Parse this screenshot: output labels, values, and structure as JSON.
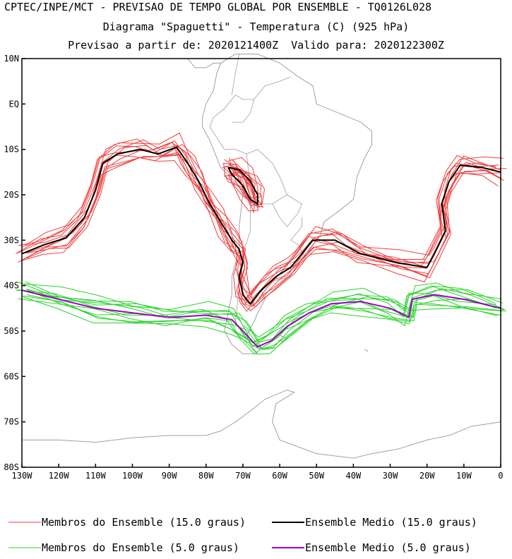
{
  "title": {
    "line1": "CPTEC/INPE/MCT - PREVISAO DE TEMPO GLOBAL POR ENSEMBLE - TQ0126L028",
    "line2": "Diagrama \"Spaguetti\" - Temperatura (C) (925 hPa)",
    "line3": "Previsao a partir de: 2020121400Z  Valido para: 2020122300Z"
  },
  "map": {
    "lon_range": [
      -130,
      0
    ],
    "lat_range": [
      -80,
      10
    ],
    "projection": "equirectangular",
    "lat_ticks": [
      {
        "value": 10,
        "label": "10N"
      },
      {
        "value": 0,
        "label": "EQ"
      },
      {
        "value": -10,
        "label": "10S"
      },
      {
        "value": -20,
        "label": "20S"
      },
      {
        "value": -30,
        "label": "30S"
      },
      {
        "value": -40,
        "label": "40S"
      },
      {
        "value": -50,
        "label": "50S"
      },
      {
        "value": -60,
        "label": "60S"
      },
      {
        "value": -70,
        "label": "70S"
      },
      {
        "value": -80,
        "label": "80S"
      }
    ],
    "lon_ticks": [
      {
        "value": -130,
        "label": "130W"
      },
      {
        "value": -120,
        "label": "120W"
      },
      {
        "value": -110,
        "label": "110W"
      },
      {
        "value": -100,
        "label": "100W"
      },
      {
        "value": -90,
        "label": "90W"
      },
      {
        "value": -80,
        "label": "80W"
      },
      {
        "value": -70,
        "label": "70W"
      },
      {
        "value": -60,
        "label": "60W"
      },
      {
        "value": -50,
        "label": "50W"
      },
      {
        "value": -40,
        "label": "40W"
      },
      {
        "value": -30,
        "label": "30W"
      },
      {
        "value": -20,
        "label": "20W"
      },
      {
        "value": -10,
        "label": "10W"
      },
      {
        "value": 0,
        "label": "0"
      }
    ],
    "colors": {
      "coastline": "#a0a0a0",
      "member15": "#f03c3c",
      "mean15": "#000000",
      "member5": "#28d228",
      "mean5": "#a000c8"
    },
    "mean15": [
      [
        -130,
        -33
      ],
      [
        -124,
        -31
      ],
      [
        -118,
        -29.5
      ],
      [
        -113,
        -25
      ],
      [
        -110,
        -19
      ],
      [
        -108,
        -13
      ],
      [
        -104,
        -11
      ],
      [
        -98,
        -10
      ],
      [
        -93,
        -11
      ],
      [
        -88,
        -9.5
      ],
      [
        -85,
        -13
      ],
      [
        -82,
        -17
      ],
      [
        -79,
        -22
      ],
      [
        -76,
        -26
      ],
      [
        -73,
        -30
      ],
      [
        -71,
        -32
      ],
      [
        -70,
        -35
      ],
      [
        -71,
        -38
      ],
      [
        -70,
        -42
      ],
      [
        -68,
        -44
      ],
      [
        -65,
        -41
      ],
      [
        -61,
        -38
      ],
      [
        -57,
        -36
      ],
      [
        -54,
        -33
      ],
      [
        -51,
        -30
      ],
      [
        -45,
        -30
      ],
      [
        -38,
        -33
      ],
      [
        -28,
        -35
      ],
      [
        -20,
        -36
      ],
      [
        -18,
        -33
      ],
      [
        -15,
        -28
      ],
      [
        -16,
        -22
      ],
      [
        -14,
        -17
      ],
      [
        -11,
        -13.5
      ],
      [
        -5,
        -14
      ],
      [
        0,
        -15
      ]
    ],
    "mean15_inland": [
      [
        -74,
        -14
      ],
      [
        -71,
        -14.5
      ],
      [
        -68,
        -17
      ],
      [
        -66,
        -20
      ],
      [
        -66,
        -22
      ],
      [
        -68,
        -21
      ],
      [
        -70,
        -18
      ],
      [
        -73,
        -15.5
      ],
      [
        -74,
        -14
      ]
    ],
    "mean5": [
      [
        -130,
        -41
      ],
      [
        -120,
        -43
      ],
      [
        -110,
        -45
      ],
      [
        -100,
        -46
      ],
      [
        -90,
        -47
      ],
      [
        -80,
        -46.5
      ],
      [
        -73,
        -47.5
      ],
      [
        -70,
        -50
      ],
      [
        -66,
        -53.5
      ],
      [
        -62,
        -52
      ],
      [
        -58,
        -49
      ],
      [
        -52,
        -46
      ],
      [
        -46,
        -44
      ],
      [
        -38,
        -43.5
      ],
      [
        -30,
        -45
      ],
      [
        -25,
        -47
      ],
      [
        -24,
        -43
      ],
      [
        -18,
        -42
      ],
      [
        -10,
        -43
      ],
      [
        0,
        -45
      ]
    ],
    "continents": [
      [
        [
          -81,
          -3
        ],
        [
          -80,
          0
        ],
        [
          -78,
          3
        ],
        [
          -77,
          7
        ],
        [
          -76,
          9
        ],
        [
          -72,
          11
        ],
        [
          -66,
          11
        ],
        [
          -60,
          9
        ],
        [
          -55,
          6
        ],
        [
          -51,
          4
        ],
        [
          -50,
          0
        ],
        [
          -44,
          -2
        ],
        [
          -38,
          -4
        ],
        [
          -35,
          -6
        ],
        [
          -35,
          -9
        ],
        [
          -37,
          -12
        ],
        [
          -39,
          -16
        ],
        [
          -40,
          -21
        ],
        [
          -43,
          -23
        ],
        [
          -48,
          -26
        ],
        [
          -49,
          -29
        ],
        [
          -52,
          -32
        ],
        [
          -54,
          -34
        ],
        [
          -57,
          -35
        ],
        [
          -57,
          -38
        ],
        [
          -62,
          -39
        ],
        [
          -65,
          -41
        ],
        [
          -64,
          -43
        ],
        [
          -66,
          -46
        ],
        [
          -67,
          -48
        ],
        [
          -69,
          -51
        ],
        [
          -68,
          -53
        ],
        [
          -66,
          -55
        ],
        [
          -70,
          -55
        ],
        [
          -73,
          -53
        ],
        [
          -75,
          -50
        ],
        [
          -74,
          -46
        ],
        [
          -73,
          -42
        ],
        [
          -73,
          -38
        ],
        [
          -71,
          -32
        ],
        [
          -71,
          -27
        ],
        [
          -70,
          -20
        ],
        [
          -71,
          -18
        ],
        [
          -76,
          -14
        ],
        [
          -79,
          -8
        ],
        [
          -81,
          -5
        ],
        [
          -81,
          -3
        ]
      ],
      [
        [
          -90,
          10
        ],
        [
          -85,
          10
        ],
        [
          -83,
          8
        ],
        [
          -80,
          8
        ],
        [
          -78,
          9
        ],
        [
          -76,
          9
        ]
      ],
      [
        [
          -60,
          -51
        ],
        [
          -58,
          -51.5
        ],
        [
          -59,
          -52.3
        ],
        [
          -60.5,
          -52
        ]
      ],
      [
        [
          -37,
          -54
        ],
        [
          -36,
          -54.5
        ]
      ],
      [
        [
          -130,
          -74
        ],
        [
          -120,
          -74
        ],
        [
          -110,
          -74.5
        ],
        [
          -100,
          -73.5
        ],
        [
          -90,
          -73
        ],
        [
          -80,
          -73
        ],
        [
          -76,
          -72
        ],
        [
          -72,
          -70
        ],
        [
          -67,
          -67
        ],
        [
          -64,
          -65
        ],
        [
          -58,
          -63
        ],
        [
          -56,
          -63.5
        ],
        [
          -58,
          -64.5
        ],
        [
          -61,
          -66
        ],
        [
          -62,
          -70
        ],
        [
          -60,
          -74
        ],
        [
          -50,
          -77
        ],
        [
          -40,
          -78
        ],
        [
          -35,
          -77
        ],
        [
          -28,
          -76
        ],
        [
          -20,
          -74
        ],
        [
          -14,
          -73
        ],
        [
          -8,
          -71
        ],
        [
          0,
          -70
        ]
      ]
    ],
    "borders": [
      [
        [
          -70,
          -18
        ],
        [
          -68,
          -22
        ],
        [
          -68,
          -28
        ],
        [
          -70,
          -33
        ],
        [
          -71,
          -40
        ],
        [
          -72,
          -48
        ],
        [
          -69,
          -52
        ]
      ],
      [
        [
          -69,
          -11
        ],
        [
          -66,
          -10
        ],
        [
          -62,
          -13
        ],
        [
          -60,
          -16
        ],
        [
          -58,
          -20
        ],
        [
          -62,
          -22
        ],
        [
          -66,
          -22
        ],
        [
          -68,
          -18
        ],
        [
          -69,
          -11
        ]
      ],
      [
        [
          -58,
          -20
        ],
        [
          -54,
          -22
        ],
        [
          -55,
          -24
        ],
        [
          -58,
          -27
        ],
        [
          -60,
          -25
        ],
        [
          -62,
          -22
        ]
      ],
      [
        [
          -73,
          -4
        ],
        [
          -70,
          -4
        ],
        [
          -68,
          -2
        ],
        [
          -67,
          1
        ],
        [
          -70,
          1
        ],
        [
          -72,
          2
        ],
        [
          -75,
          -1
        ],
        [
          -78,
          -3
        ],
        [
          -79,
          -5
        ],
        [
          -75,
          -10
        ],
        [
          -72,
          -10
        ],
        [
          -69,
          -11
        ]
      ],
      [
        [
          -73,
          2
        ],
        [
          -72,
          7
        ],
        [
          -71,
          11
        ]
      ],
      [
        [
          -67,
          1
        ],
        [
          -64,
          4
        ],
        [
          -60,
          5
        ],
        [
          -57,
          6
        ]
      ],
      [
        [
          -57,
          -30
        ],
        [
          -54,
          -27
        ],
        [
          -54,
          -25
        ]
      ],
      [
        [
          -53,
          -34
        ],
        [
          -55,
          -31
        ],
        [
          -57,
          -30
        ]
      ]
    ]
  },
  "legend": {
    "items": [
      {
        "label": "Membros do Ensemble (15.0 graus)",
        "color": "#f03c3c",
        "weight": "thin"
      },
      {
        "label": "Ensemble Medio (15.0 graus)",
        "color": "#000000",
        "weight": "thick"
      },
      {
        "label": "Membros do Ensemble (5.0 graus)",
        "color": "#28d228",
        "weight": "thin"
      },
      {
        "label": "Ensemble Medio (5.0 graus)",
        "color": "#a000c8",
        "weight": "thick"
      }
    ]
  }
}
